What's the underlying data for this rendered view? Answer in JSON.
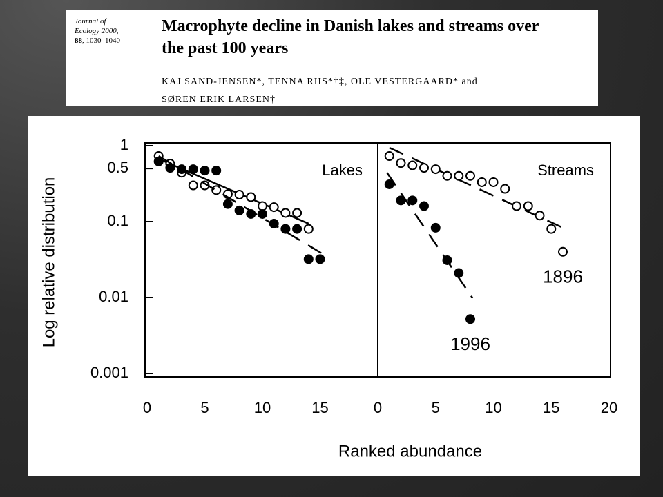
{
  "header": {
    "journal": [
      "Journal of",
      "Ecology 2000,"
    ],
    "volume": "88",
    "pages": ", 1030–1040",
    "title": [
      "Macrophyte decline in Danish lakes and streams over",
      "the past 100 years"
    ],
    "authors": [
      "KAJ SAND-JENSEN*, TENNA RIIS*†‡, OLE VESTERGAARD* and",
      "SØREN ERIK LARSEN†"
    ]
  },
  "chart_data": {
    "type": "scatter",
    "ylabel": "Log relative distribution",
    "xlabel": "Ranked abundance",
    "log_y": true,
    "ylim": [
      0.001,
      1
    ],
    "yticks": [
      1,
      0.5,
      0.1,
      0.01,
      0.001
    ],
    "panels": [
      {
        "title": "Lakes",
        "xlim": [
          0,
          20
        ],
        "xticks": [
          0,
          5,
          10,
          15
        ],
        "series": [
          {
            "marker": "open",
            "x": [
              1,
              2,
              3,
              4,
              5,
              6,
              7,
              8,
              9,
              10,
              11,
              12,
              13,
              14
            ],
            "values": [
              0.73,
              0.58,
              0.44,
              0.3,
              0.3,
              0.26,
              0.23,
              0.226,
              0.21,
              0.16,
              0.155,
              0.13,
              0.13,
              0.08
            ],
            "fit": {
              "x": [
                1,
                14
              ],
              "values": [
                0.67,
                0.094
              ],
              "dashed": false
            }
          },
          {
            "marker": "filled",
            "x": [
              1,
              2,
              3,
              4,
              5,
              6,
              7,
              8,
              9,
              10,
              11,
              12,
              13,
              14,
              15
            ],
            "values": [
              0.62,
              0.51,
              0.49,
              0.49,
              0.47,
              0.47,
              0.17,
              0.14,
              0.126,
              0.126,
              0.094,
              0.08,
              0.08,
              0.032,
              0.032
            ],
            "fit": {
              "x": [
                1,
                15.3
              ],
              "values": [
                0.73,
                0.037
              ],
              "dashed": true
            }
          }
        ]
      },
      {
        "title": "Streams",
        "xlim": [
          0,
          20
        ],
        "xticks": [
          0,
          5,
          10,
          15,
          20
        ],
        "series": [
          {
            "name": "1896",
            "marker": "open",
            "x": [
              1,
              2,
              3,
              4,
              5,
              6,
              7,
              8,
              9,
              10,
              11,
              12,
              13,
              14,
              15,
              16
            ],
            "values": [
              0.73,
              0.59,
              0.55,
              0.51,
              0.49,
              0.4,
              0.4,
              0.4,
              0.33,
              0.33,
              0.27,
              0.16,
              0.16,
              0.12,
              0.08,
              0.04
            ],
            "fit": {
              "x": [
                1,
                16
              ],
              "values": [
                0.94,
                0.083
              ],
              "dashed": true
            }
          },
          {
            "name": "1996",
            "marker": "filled",
            "x": [
              1,
              2,
              3,
              4,
              5,
              6,
              7,
              8
            ],
            "values": [
              0.31,
              0.19,
              0.19,
              0.16,
              0.083,
              0.031,
              0.021,
              0.0052
            ],
            "fit": {
              "x": [
                0.8,
                8.2
              ],
              "values": [
                0.44,
                0.0098
              ],
              "dashed": true
            }
          }
        ]
      }
    ]
  }
}
